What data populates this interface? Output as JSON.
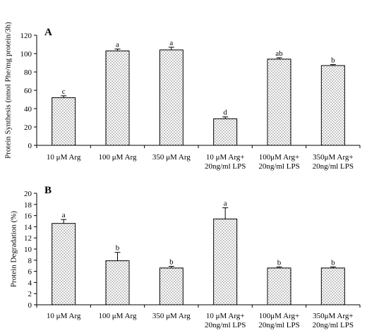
{
  "chart_data": [
    {
      "type": "bar",
      "panel_label": "A",
      "ylabel": "Protein Synthesis (nmol Phe/mg protein/3h)",
      "ylim": [
        0,
        120
      ],
      "yticks": [
        0,
        20,
        40,
        60,
        80,
        100,
        120
      ],
      "categories": [
        [
          "10 μM Arg"
        ],
        [
          "100 μM Arg"
        ],
        [
          "350 μM Arg"
        ],
        [
          "10 μM Arg+",
          "20ng/ml LPS"
        ],
        [
          "100μM Arg+",
          "20ng/ml LPS"
        ],
        [
          "350μM Arg+",
          "20ng/ml LPS"
        ]
      ],
      "values": [
        52,
        103,
        104,
        29,
        94,
        87
      ],
      "errors": [
        2,
        2,
        3,
        2,
        1.5,
        1
      ],
      "significance": [
        "c",
        "a",
        "a",
        "d",
        "ab",
        "b"
      ],
      "legend": false,
      "grid": false
    },
    {
      "type": "bar",
      "panel_label": "B",
      "ylabel": "Protein Degradation (%)",
      "ylim": [
        0,
        20
      ],
      "yticks": [
        0,
        2,
        4,
        6,
        8,
        10,
        12,
        14,
        16,
        18,
        20
      ],
      "categories": [
        [
          "10 μM Arg"
        ],
        [
          "100 μM Arg"
        ],
        [
          "350 μM Arg"
        ],
        [
          "10 μM Arg+",
          "20ng/ml LPS"
        ],
        [
          "100μM Arg+",
          "20ng/ml LPS"
        ],
        [
          "350μM Arg+",
          "20ng/ml LPS"
        ]
      ],
      "values": [
        14.6,
        7.9,
        6.6,
        15.4,
        6.6,
        6.6
      ],
      "errors": [
        0.7,
        1.5,
        0.3,
        2.0,
        0.2,
        0.2
      ],
      "significance": [
        "a",
        "b",
        "b",
        "a",
        "b",
        "b"
      ],
      "legend": false,
      "grid": false
    }
  ]
}
